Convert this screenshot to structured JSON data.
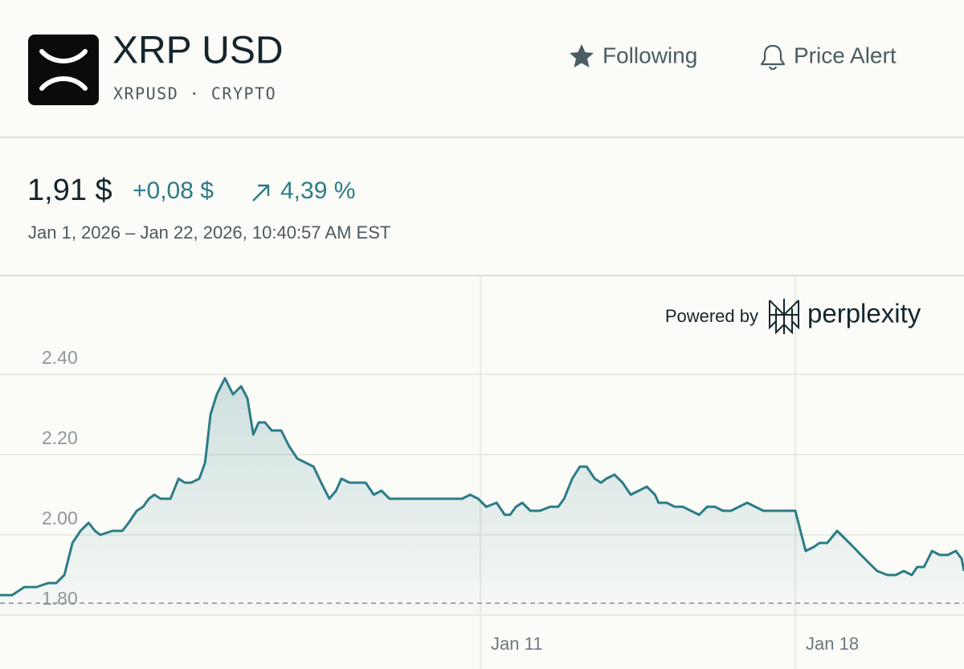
{
  "header": {
    "title": "XRP USD",
    "subtitle": "XRPUSD · CRYPTO",
    "actions": [
      "Following",
      "Price Alert"
    ]
  },
  "quote": {
    "price": "1,91 $",
    "change": "+0,08 $",
    "change_percent": "4,39 %",
    "range": "Jan 1, 2026 – Jan 22, 2026, 10:40:57 AM EST"
  },
  "attribution": {
    "prefix": "Powered by",
    "brand": "perplexity"
  },
  "chart_data": {
    "type": "area",
    "color": "#2b7c87",
    "grid": true,
    "baseline": 1.83,
    "xlim": [
      0.32,
      21.75
    ],
    "ylim": [
      1.8,
      2.65
    ],
    "xticks": [
      {
        "value": 11,
        "label": "Jan 11"
      },
      {
        "value": 18,
        "label": "Jan 18"
      }
    ],
    "yticks": [
      {
        "value": 1.8,
        "label": "1.80"
      },
      {
        "value": 2.0,
        "label": "2.00"
      },
      {
        "value": 2.2,
        "label": "2.20"
      },
      {
        "value": 2.4,
        "label": "2.40"
      }
    ],
    "x": [
      0.32,
      0.59,
      0.86,
      1.13,
      1.39,
      1.57,
      1.75,
      1.93,
      2.11,
      2.29,
      2.43,
      2.55,
      2.82,
      3.04,
      3.18,
      3.36,
      3.5,
      3.63,
      3.75,
      3.89,
      4.11,
      4.29,
      4.43,
      4.57,
      4.75,
      4.88,
      5.0,
      5.14,
      5.32,
      5.5,
      5.68,
      5.82,
      5.95,
      6.07,
      6.21,
      6.36,
      6.57,
      6.75,
      6.93,
      7.11,
      7.29,
      7.46,
      7.64,
      7.79,
      7.91,
      8.09,
      8.27,
      8.45,
      8.63,
      8.8,
      8.98,
      9.16,
      9.34,
      9.52,
      9.79,
      10.05,
      10.32,
      10.59,
      10.77,
      10.95,
      11.13,
      11.36,
      11.54,
      11.66,
      11.79,
      11.93,
      12.11,
      12.32,
      12.55,
      12.73,
      12.86,
      13.04,
      13.21,
      13.36,
      13.54,
      13.68,
      13.8,
      13.98,
      14.16,
      14.34,
      14.52,
      14.7,
      14.88,
      14.96,
      15.14,
      15.32,
      15.5,
      15.68,
      15.86,
      16.04,
      16.21,
      16.39,
      16.57,
      16.75,
      16.93,
      17.11,
      17.29,
      17.46,
      17.73,
      18.0,
      18.23,
      18.41,
      18.54,
      18.71,
      18.93,
      19.11,
      19.29,
      19.46,
      19.64,
      19.82,
      20.05,
      20.23,
      20.41,
      20.59,
      20.71,
      20.86,
      21.04,
      21.21,
      21.39,
      21.57,
      21.7,
      21.75
    ],
    "values": [
      1.85,
      1.85,
      1.87,
      1.87,
      1.88,
      1.88,
      1.9,
      1.98,
      2.01,
      2.03,
      2.01,
      2.0,
      2.01,
      2.01,
      2.03,
      2.06,
      2.07,
      2.09,
      2.1,
      2.09,
      2.09,
      2.14,
      2.13,
      2.13,
      2.14,
      2.18,
      2.3,
      2.35,
      2.39,
      2.35,
      2.37,
      2.34,
      2.25,
      2.28,
      2.28,
      2.26,
      2.26,
      2.22,
      2.19,
      2.18,
      2.17,
      2.13,
      2.09,
      2.11,
      2.14,
      2.13,
      2.13,
      2.13,
      2.1,
      2.11,
      2.09,
      2.09,
      2.09,
      2.09,
      2.09,
      2.09,
      2.09,
      2.09,
      2.1,
      2.09,
      2.07,
      2.08,
      2.05,
      2.05,
      2.07,
      2.08,
      2.06,
      2.06,
      2.07,
      2.07,
      2.09,
      2.14,
      2.17,
      2.17,
      2.14,
      2.13,
      2.14,
      2.15,
      2.13,
      2.1,
      2.11,
      2.12,
      2.1,
      2.08,
      2.08,
      2.07,
      2.07,
      2.06,
      2.05,
      2.07,
      2.07,
      2.06,
      2.06,
      2.07,
      2.08,
      2.07,
      2.06,
      2.06,
      2.06,
      2.06,
      1.96,
      1.97,
      1.98,
      1.98,
      2.01,
      1.99,
      1.97,
      1.95,
      1.93,
      1.91,
      1.9,
      1.9,
      1.91,
      1.9,
      1.92,
      1.92,
      1.96,
      1.95,
      1.95,
      1.96,
      1.94,
      1.91
    ]
  }
}
